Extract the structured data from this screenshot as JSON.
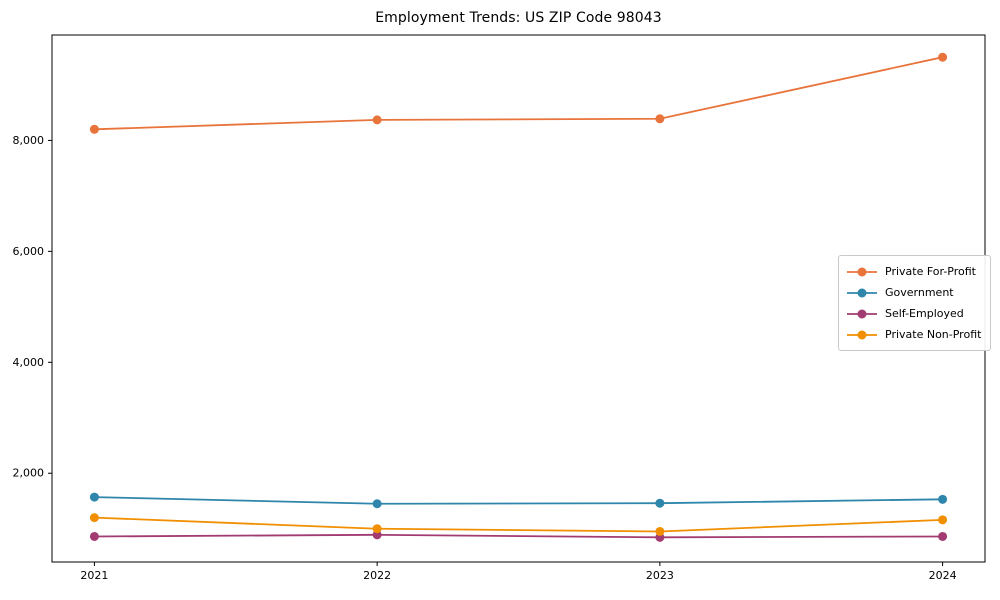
{
  "figure": {
    "background": "#ffffff",
    "axis_color": "#000000",
    "text_color": "#000000",
    "legend_border_color": "#c9c9c9"
  },
  "chart_data": {
    "type": "line",
    "title": "Employment Trends: US ZIP Code 98043",
    "xlabel": "",
    "ylabel": "",
    "x": [
      2021,
      2022,
      2023,
      2024
    ],
    "x_tick_labels": [
      "2021",
      "2022",
      "2023",
      "2024"
    ],
    "series": [
      {
        "name": "Private For-Profit",
        "color": "#E8743B",
        "values": [
          8200,
          8370,
          8390,
          9500
        ]
      },
      {
        "name": "Government",
        "color": "#2E86AB",
        "values": [
          1570,
          1450,
          1460,
          1530
        ]
      },
      {
        "name": "Self-Employed",
        "color": "#A23B72",
        "values": [
          860,
          890,
          845,
          860
        ]
      },
      {
        "name": "Private Non-Profit",
        "color": "#F18F01",
        "values": [
          1200,
          1000,
          950,
          1160
        ]
      }
    ],
    "xlim": [
      2020.85,
      2024.15
    ],
    "ylim": [
      400,
      9900
    ],
    "yticks": {
      "values": [
        2000,
        4000,
        6000,
        8000
      ],
      "labels": [
        "2,000",
        "4,000",
        "6,000",
        "8,000"
      ]
    },
    "grid": false,
    "marker": "o",
    "legend": {
      "position": "center right"
    }
  }
}
